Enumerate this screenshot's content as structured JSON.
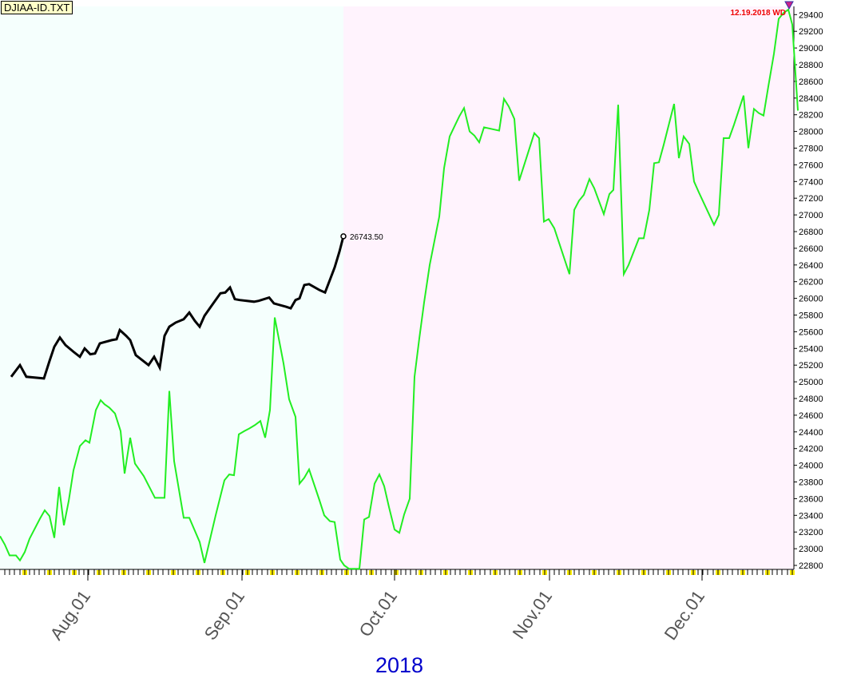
{
  "file_label": "DJIAA-ID.TXT",
  "chart_data": {
    "type": "line",
    "y_axis": {
      "min": 22800,
      "max": 29400,
      "step": 200,
      "position": "right"
    },
    "x_tick_labels": [
      "Aug.01",
      "Sep.01",
      "Oct.01",
      "Nov.01",
      "Dec.01"
    ],
    "year_label": "2018",
    "end_value_label": "26743.50",
    "date_marker_label": "12.19.2018 WD",
    "colors": {
      "past_background": "#f5fffd",
      "future_background": "#fff3fd",
      "actual_line": "#000000",
      "projection_line": "#22ee22",
      "marker_text": "#ee0000",
      "year_text": "#0000cc",
      "tick_highlight": "#ffee00"
    },
    "series": [
      {
        "key": "actual",
        "values": [
          [
            14,
            25060
          ],
          [
            25,
            25200
          ],
          [
            33,
            25060
          ],
          [
            55,
            25040
          ],
          [
            62,
            25250
          ],
          [
            68,
            25420
          ],
          [
            75,
            25530
          ],
          [
            82,
            25440
          ],
          [
            92,
            25360
          ],
          [
            100,
            25300
          ],
          [
            106,
            25400
          ],
          [
            113,
            25330
          ],
          [
            119,
            25340
          ],
          [
            125,
            25460
          ],
          [
            140,
            25500
          ],
          [
            146,
            25510
          ],
          [
            150,
            25620
          ],
          [
            158,
            25550
          ],
          [
            163,
            25500
          ],
          [
            170,
            25320
          ],
          [
            186,
            25200
          ],
          [
            193,
            25300
          ],
          [
            200,
            25170
          ],
          [
            206,
            25550
          ],
          [
            212,
            25660
          ],
          [
            220,
            25710
          ],
          [
            230,
            25750
          ],
          [
            237,
            25830
          ],
          [
            244,
            25730
          ],
          [
            250,
            25660
          ],
          [
            256,
            25790
          ],
          [
            264,
            25900
          ],
          [
            276,
            26060
          ],
          [
            282,
            26070
          ],
          [
            288,
            26130
          ],
          [
            294,
            25990
          ],
          [
            300,
            25980
          ],
          [
            318,
            25960
          ],
          [
            324,
            25970
          ],
          [
            337,
            26010
          ],
          [
            343,
            25940
          ],
          [
            358,
            25900
          ],
          [
            364,
            25880
          ],
          [
            370,
            25980
          ],
          [
            375,
            26000
          ],
          [
            381,
            26160
          ],
          [
            387,
            26170
          ],
          [
            400,
            26100
          ],
          [
            407,
            26070
          ],
          [
            413,
            26220
          ],
          [
            419,
            26370
          ],
          [
            425,
            26560
          ],
          [
            430,
            26743.5
          ]
        ]
      },
      {
        "key": "projection",
        "values": [
          [
            0,
            23150
          ],
          [
            6,
            23050
          ],
          [
            12,
            22920
          ],
          [
            20,
            22920
          ],
          [
            25,
            22860
          ],
          [
            31,
            22960
          ],
          [
            37,
            23120
          ],
          [
            50,
            23360
          ],
          [
            56,
            23460
          ],
          [
            62,
            23390
          ],
          [
            68,
            23130
          ],
          [
            74,
            23740
          ],
          [
            80,
            23280
          ],
          [
            86,
            23570
          ],
          [
            92,
            23940
          ],
          [
            100,
            24230
          ],
          [
            107,
            24300
          ],
          [
            112,
            24270
          ],
          [
            120,
            24660
          ],
          [
            126,
            24780
          ],
          [
            131,
            24730
          ],
          [
            137,
            24690
          ],
          [
            144,
            24620
          ],
          [
            151,
            24410
          ],
          [
            156,
            23900
          ],
          [
            163,
            24330
          ],
          [
            169,
            24020
          ],
          [
            180,
            23870
          ],
          [
            194,
            23610
          ],
          [
            206,
            23610
          ],
          [
            212,
            24890
          ],
          [
            218,
            24050
          ],
          [
            230,
            23370
          ],
          [
            237,
            23370
          ],
          [
            250,
            23080
          ],
          [
            256,
            22830
          ],
          [
            270,
            23400
          ],
          [
            281,
            23820
          ],
          [
            287,
            23890
          ],
          [
            293,
            23880
          ],
          [
            299,
            24370
          ],
          [
            306,
            24410
          ],
          [
            312,
            24440
          ],
          [
            319,
            24480
          ],
          [
            326,
            24530
          ],
          [
            332,
            24330
          ],
          [
            338,
            24660
          ],
          [
            344,
            25770
          ],
          [
            355,
            25220
          ],
          [
            362,
            24790
          ],
          [
            370,
            24580
          ],
          [
            375,
            23780
          ],
          [
            381,
            23850
          ],
          [
            387,
            23950
          ],
          [
            400,
            23580
          ],
          [
            406,
            23400
          ],
          [
            413,
            23330
          ],
          [
            419,
            23320
          ],
          [
            426,
            22870
          ],
          [
            431,
            22800
          ],
          [
            437,
            22760
          ],
          [
            450,
            22760
          ],
          [
            456,
            23350
          ],
          [
            462,
            23380
          ],
          [
            469,
            23780
          ],
          [
            475,
            23890
          ],
          [
            481,
            23750
          ],
          [
            487,
            23500
          ],
          [
            494,
            23230
          ],
          [
            500,
            23190
          ],
          [
            506,
            23410
          ],
          [
            513,
            23600
          ],
          [
            519,
            25060
          ],
          [
            525,
            25520
          ],
          [
            531,
            25950
          ],
          [
            538,
            26400
          ],
          [
            550,
            26980
          ],
          [
            556,
            27560
          ],
          [
            563,
            27940
          ],
          [
            569,
            28060
          ],
          [
            575,
            28180
          ],
          [
            581,
            28280
          ],
          [
            588,
            28000
          ],
          [
            594,
            27950
          ],
          [
            600,
            27870
          ],
          [
            606,
            28050
          ],
          [
            625,
            28010
          ],
          [
            631,
            28390
          ],
          [
            637,
            28300
          ],
          [
            644,
            28150
          ],
          [
            650,
            27410
          ],
          [
            669,
            27980
          ],
          [
            675,
            27920
          ],
          [
            681,
            26920
          ],
          [
            687,
            26950
          ],
          [
            694,
            26840
          ],
          [
            713,
            26290
          ],
          [
            719,
            27060
          ],
          [
            725,
            27170
          ],
          [
            731,
            27240
          ],
          [
            738,
            27430
          ],
          [
            744,
            27320
          ],
          [
            756,
            27010
          ],
          [
            763,
            27250
          ],
          [
            768,
            27300
          ],
          [
            774,
            28320
          ],
          [
            781,
            26290
          ],
          [
            787,
            26400
          ],
          [
            800,
            26720
          ],
          [
            806,
            26720
          ],
          [
            813,
            27060
          ],
          [
            819,
            27620
          ],
          [
            825,
            27630
          ],
          [
            831,
            27840
          ],
          [
            844,
            28330
          ],
          [
            850,
            27680
          ],
          [
            856,
            27940
          ],
          [
            863,
            27850
          ],
          [
            869,
            27400
          ],
          [
            875,
            27270
          ],
          [
            894,
            26880
          ],
          [
            900,
            27000
          ],
          [
            906,
            27920
          ],
          [
            913,
            27920
          ],
          [
            919,
            28080
          ],
          [
            931,
            28430
          ],
          [
            937,
            27800
          ],
          [
            944,
            28270
          ],
          [
            950,
            28220
          ],
          [
            956,
            28190
          ],
          [
            962,
            28540
          ],
          [
            969,
            28930
          ],
          [
            975,
            29350
          ],
          [
            981,
            29420
          ],
          [
            987,
            29460
          ],
          [
            992,
            29280
          ],
          [
            999,
            28250
          ]
        ]
      }
    ]
  }
}
